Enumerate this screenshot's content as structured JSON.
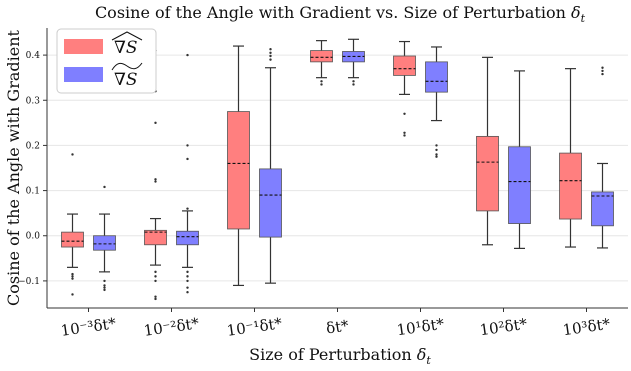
{
  "chart_data": {
    "type": "box",
    "title": "Cosine of the Angle with Gradient vs. Size of Perturbation δt",
    "xlabel": "Size of Perturbation δt",
    "ylabel": "Cosine of the Angle with Gradient",
    "categories": [
      "10⁻³δt*",
      "10⁻²δt*",
      "10⁻¹δt*",
      "δt*",
      "10¹δt*",
      "10²δt*",
      "10³δt*"
    ],
    "ylim": [
      -0.16,
      0.46
    ],
    "yticks": [
      -0.1,
      0.0,
      0.1,
      0.2,
      0.3,
      0.4
    ],
    "ytick_labels": [
      "−0.1",
      "0.0",
      "0.1",
      "0.2",
      "0.3",
      "0.4"
    ],
    "legend": {
      "position": "top-left"
    },
    "series": [
      {
        "name": "∇S (wide hat)",
        "color": "#ff7f7f",
        "boxes": [
          {
            "whisker_low": -0.07,
            "q1": -0.025,
            "median": -0.012,
            "q3": 0.008,
            "whisker_high": 0.048,
            "outliers": [
              0.18,
              -0.085,
              -0.09,
              -0.095,
              -0.13
            ]
          },
          {
            "whisker_low": -0.065,
            "q1": -0.02,
            "median": 0.008,
            "q3": 0.012,
            "whisker_high": 0.038,
            "outliers": [
              0.41,
              0.32,
              0.25,
              0.125,
              0.12,
              -0.08,
              -0.09,
              -0.1,
              -0.135,
              -0.14
            ]
          },
          {
            "whisker_low": -0.11,
            "q1": 0.015,
            "median": 0.16,
            "q3": 0.275,
            "whisker_high": 0.42,
            "outliers": []
          },
          {
            "whisker_low": 0.35,
            "q1": 0.385,
            "median": 0.395,
            "q3": 0.41,
            "whisker_high": 0.432,
            "outliers": [
              0.342,
              0.335
            ]
          },
          {
            "whisker_low": 0.313,
            "q1": 0.355,
            "median": 0.37,
            "q3": 0.398,
            "whisker_high": 0.43,
            "outliers": [
              0.27,
              0.228,
              0.222
            ]
          },
          {
            "whisker_low": -0.02,
            "q1": 0.055,
            "median": 0.163,
            "q3": 0.22,
            "whisker_high": 0.395,
            "outliers": []
          },
          {
            "whisker_low": -0.025,
            "q1": 0.037,
            "median": 0.122,
            "q3": 0.183,
            "whisker_high": 0.37,
            "outliers": []
          }
        ]
      },
      {
        "name": "∇S (wide tilde)",
        "color": "#7f7fff",
        "boxes": [
          {
            "whisker_low": -0.08,
            "q1": -0.032,
            "median": -0.018,
            "q3": 0.0,
            "whisker_high": 0.048,
            "outliers": [
              0.108,
              -0.1,
              -0.11,
              -0.115,
              -0.12
            ]
          },
          {
            "whisker_low": -0.07,
            "q1": -0.02,
            "median": -0.002,
            "q3": 0.01,
            "whisker_high": 0.055,
            "outliers": [
              0.4,
              0.2,
              0.17,
              0.06,
              -0.08,
              -0.09,
              -0.1,
              -0.115,
              -0.125
            ]
          },
          {
            "whisker_low": -0.105,
            "q1": -0.003,
            "median": 0.09,
            "q3": 0.148,
            "whisker_high": 0.372,
            "outliers": [
              0.413,
              0.405,
              0.398,
              0.39
            ]
          },
          {
            "whisker_low": 0.35,
            "q1": 0.385,
            "median": 0.397,
            "q3": 0.408,
            "whisker_high": 0.435,
            "outliers": [
              0.342,
              0.335
            ]
          },
          {
            "whisker_low": 0.255,
            "q1": 0.318,
            "median": 0.342,
            "q3": 0.385,
            "whisker_high": 0.418,
            "outliers": [
              0.2,
              0.19,
              0.18,
              0.175
            ]
          },
          {
            "whisker_low": -0.028,
            "q1": 0.027,
            "median": 0.12,
            "q3": 0.197,
            "whisker_high": 0.365,
            "outliers": []
          },
          {
            "whisker_low": -0.027,
            "q1": 0.022,
            "median": 0.088,
            "q3": 0.097,
            "whisker_high": 0.16,
            "outliers": [
              0.372,
              0.365,
              0.358
            ]
          }
        ]
      }
    ]
  }
}
